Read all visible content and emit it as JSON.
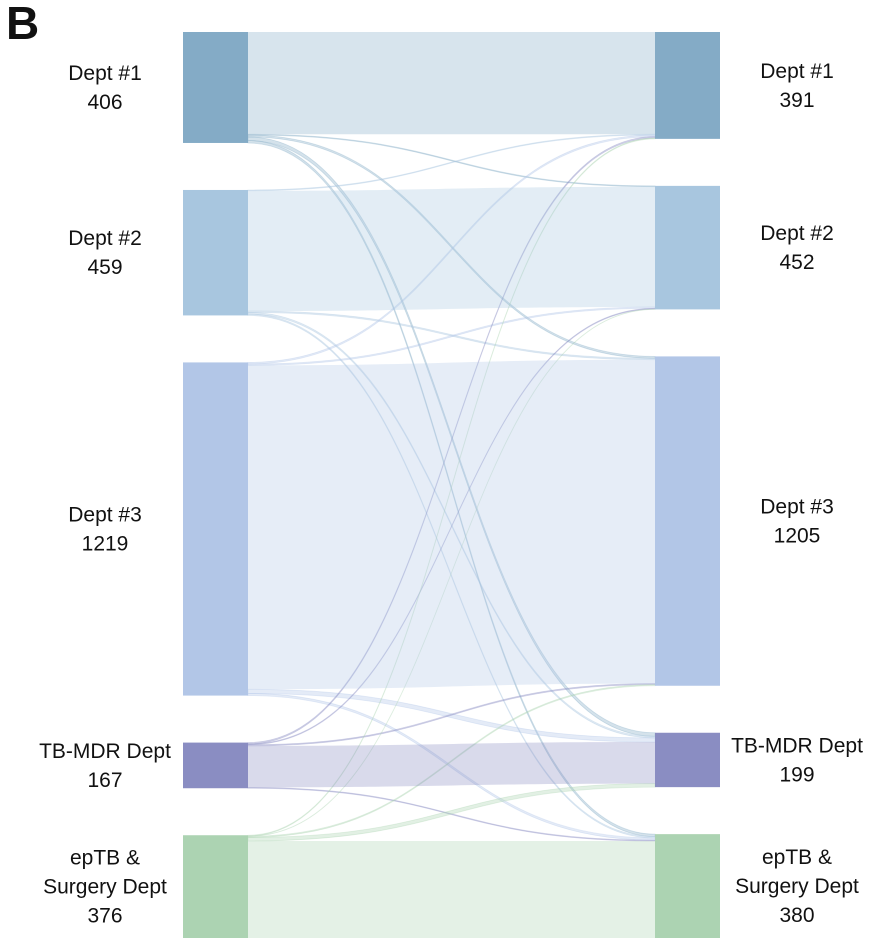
{
  "panel_label": "B",
  "chart_data": {
    "type": "sankey",
    "title": "",
    "colors": [
      "#84abc6",
      "#a8c6df",
      "#b2c6e7",
      "#8a8dc2",
      "#acd3b2"
    ],
    "left_nodes": [
      {
        "label_lines": [
          "Dept #1"
        ],
        "value": 406
      },
      {
        "label_lines": [
          "Dept #2"
        ],
        "value": 459
      },
      {
        "label_lines": [
          "Dept #3"
        ],
        "value": 1219
      },
      {
        "label_lines": [
          "TB-MDR Dept"
        ],
        "value": 167
      },
      {
        "label_lines": [
          "epTB &",
          "Surgery Dept"
        ],
        "value": 376
      }
    ],
    "right_nodes": [
      {
        "label_lines": [
          "Dept #1"
        ],
        "value": 391
      },
      {
        "label_lines": [
          "Dept #2"
        ],
        "value": 452
      },
      {
        "label_lines": [
          "Dept #3"
        ],
        "value": 1205
      },
      {
        "label_lines": [
          "TB-MDR Dept"
        ],
        "value": 199
      },
      {
        "label_lines": [
          "epTB &",
          "Surgery Dept"
        ],
        "value": 380
      }
    ],
    "links": [
      [
        374,
        3,
        7,
        13,
        9
      ],
      [
        3,
        440,
        5,
        6,
        5
      ],
      [
        6,
        5,
        1185,
        15,
        8
      ],
      [
        5,
        3,
        4,
        152,
        3
      ],
      [
        3,
        1,
        4,
        13,
        355
      ]
    ]
  }
}
